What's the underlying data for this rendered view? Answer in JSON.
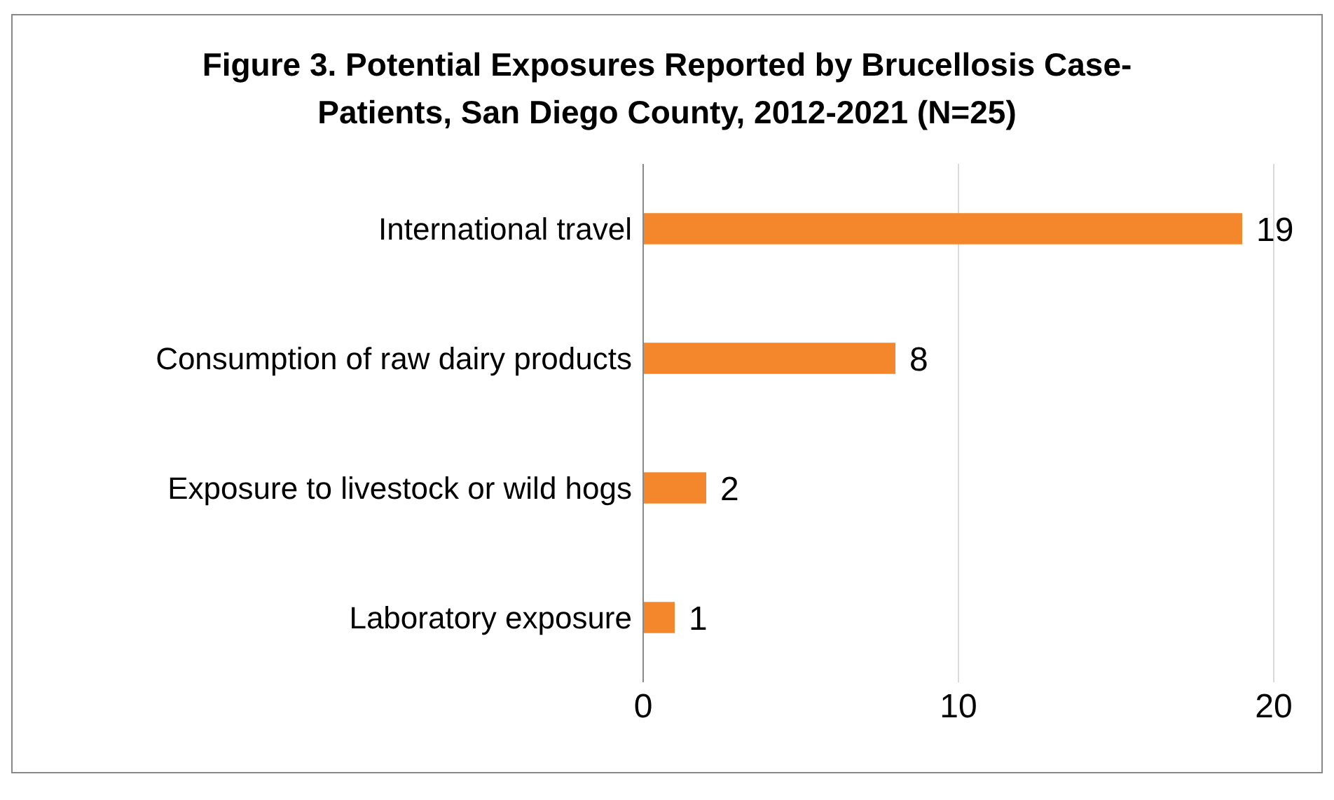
{
  "chart_data": {
    "type": "bar",
    "orientation": "horizontal",
    "title": "Figure 3. Potential Exposures Reported by Brucellosis Case-Patients, San Diego County, 2012-2021 (N=25)",
    "categories": [
      "International travel",
      "Consumption of raw dairy products",
      "Exposure to livestock or wild hogs",
      "Laboratory exposure"
    ],
    "values": [
      19,
      8,
      2,
      1
    ],
    "color": "#f4862c",
    "xlim": [
      0,
      20
    ],
    "xticks": [
      0,
      10,
      20
    ],
    "grid": "x",
    "data_labels": true
  }
}
